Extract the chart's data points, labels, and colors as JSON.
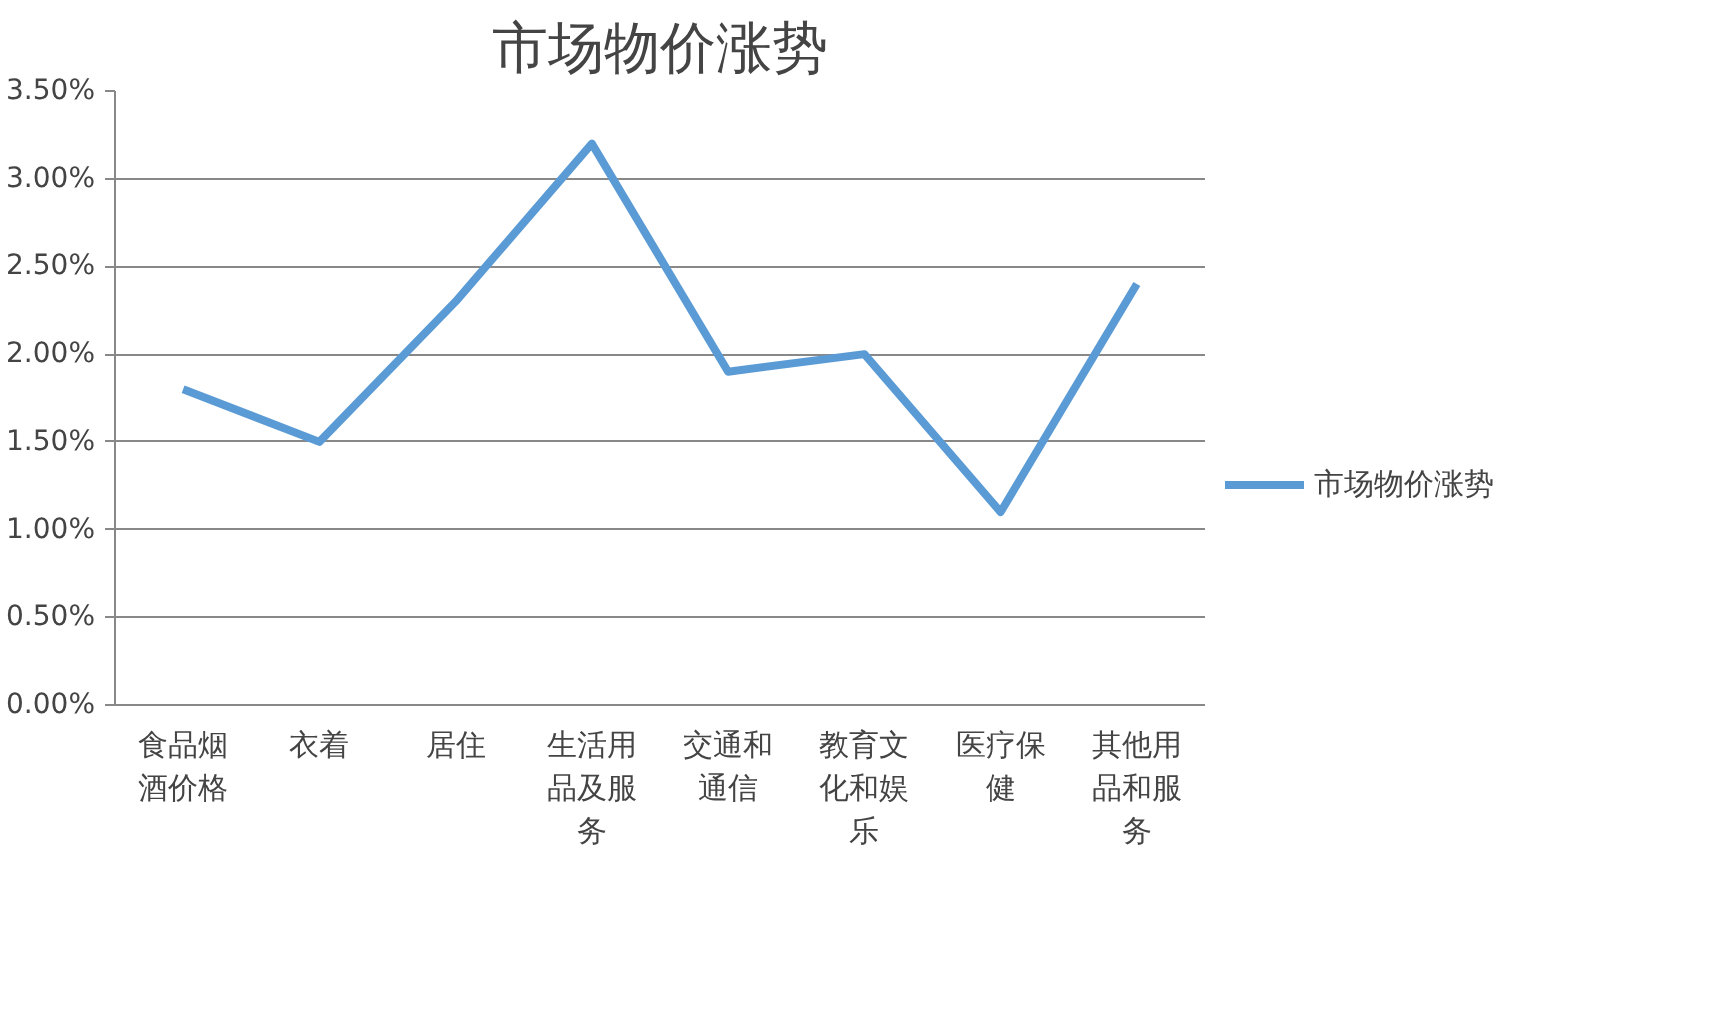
{
  "chart_data": {
    "type": "line",
    "title": "市场物价涨势",
    "categories": [
      "食品烟酒价格",
      "衣着",
      "居住",
      "生活用品及服务",
      "交通和通信",
      "教育文化和娱乐",
      "医疗保健",
      "其他用品和服务"
    ],
    "series": [
      {
        "name": "市场物价涨势",
        "color": "#5b9bd5",
        "values": [
          1.8,
          1.5,
          2.3,
          3.2,
          1.9,
          2.0,
          1.1,
          2.4
        ]
      }
    ],
    "ylim": [
      0,
      3.5
    ],
    "yticks": [
      {
        "value": 0,
        "label": "0.00%"
      },
      {
        "value": 0.5,
        "label": "0.50%"
      },
      {
        "value": 1,
        "label": "1.00%"
      },
      {
        "value": 1.5,
        "label": "1.50%"
      },
      {
        "value": 2,
        "label": "2.00%"
      },
      {
        "value": 2.5,
        "label": "2.50%"
      },
      {
        "value": 3,
        "label": "3.00%"
      },
      {
        "value": 3.5,
        "label": "3.50%"
      }
    ],
    "grid": "y",
    "legend": "right",
    "marker": "none",
    "line_style": "solid"
  }
}
